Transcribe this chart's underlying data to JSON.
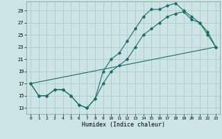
{
  "xlabel": "Humidex (Indice chaleur)",
  "bg_color": "#cce4e4",
  "grid_color": "#aacccc",
  "line_color": "#1a6b6b",
  "x_ticks": [
    0,
    1,
    2,
    3,
    4,
    5,
    6,
    7,
    8,
    9,
    10,
    11,
    12,
    13,
    14,
    15,
    16,
    17,
    18,
    19,
    20,
    21,
    22,
    23
  ],
  "y_ticks": [
    13,
    15,
    17,
    19,
    21,
    23,
    25,
    27,
    29
  ],
  "xlim": [
    -0.5,
    23.5
  ],
  "ylim": [
    12.0,
    30.5
  ],
  "line1_x": [
    0,
    1,
    2,
    3,
    4,
    5,
    6,
    7,
    8,
    9,
    10,
    11,
    12,
    13,
    14,
    15,
    16,
    17,
    18,
    19,
    20,
    21,
    22,
    23
  ],
  "line1_y": [
    17,
    15,
    15,
    16,
    16,
    15,
    13.5,
    13,
    14.5,
    19,
    21,
    22,
    24,
    26,
    28,
    29.2,
    29.2,
    29.8,
    30.2,
    29,
    28,
    27,
    25,
    23
  ],
  "line2_x": [
    0,
    1,
    2,
    3,
    4,
    5,
    6,
    7,
    8,
    9,
    10,
    11,
    12,
    13,
    14,
    15,
    16,
    17,
    18,
    19,
    20,
    21,
    22,
    23
  ],
  "line2_y": [
    17,
    15,
    15,
    16,
    16,
    15,
    13.5,
    13,
    14.5,
    17,
    19,
    20,
    21,
    23,
    25,
    26,
    27,
    28,
    28.5,
    28.8,
    27.5,
    27,
    25.5,
    23
  ],
  "line3_x": [
    0,
    23
  ],
  "line3_y": [
    17,
    23
  ]
}
